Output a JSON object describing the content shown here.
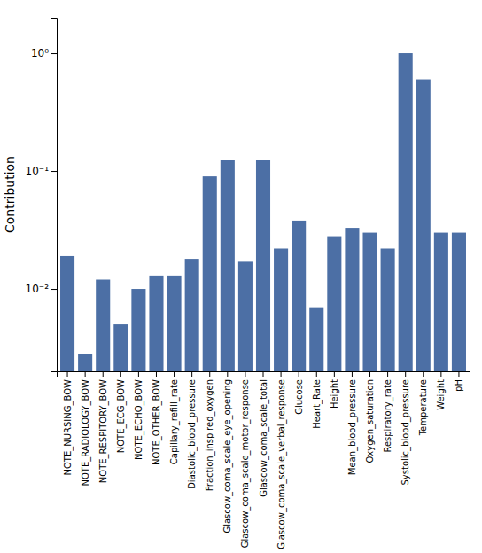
{
  "chart_data": {
    "type": "bar",
    "categories": [
      "NOTE_NURSING_BOW",
      "NOTE_RADIOLOGY_BOW",
      "NOTE_RESPITORY_BOW",
      "NOTE_ECG_BOW",
      "NOTE_ECHO_BOW",
      "NOTE_OTHER_BOW",
      "Capillary_refill_rate",
      "Diastolic_blood_pressure",
      "Fraction_inspired_oxygen",
      "Glascow_coma_scale_eye_opening",
      "Glascow_coma_scale_motor_response",
      "Glascow_coma_scale_total",
      "Glascow_coma_scale_verbal_response",
      "Glucose",
      "Heart_Rate",
      "Height",
      "Mean_blood_pressure",
      "Oxygen_saturation",
      "Respiratory_rate",
      "Systolic_blood_pressure",
      "Temperature",
      "Weight",
      "pH"
    ],
    "values": [
      0.019,
      0.0028,
      0.012,
      0.005,
      0.01,
      0.013,
      0.013,
      0.018,
      0.09,
      0.125,
      0.017,
      0.125,
      0.022,
      0.038,
      0.007,
      0.028,
      0.033,
      0.03,
      0.022,
      1.0,
      0.6,
      0.03,
      0.03
    ],
    "color": "#4c6fa5",
    "ylabel": "Contribution",
    "ylim": [
      0.002,
      2.0
    ],
    "yticks": [
      {
        "value": 0.01,
        "label": "10⁻²"
      },
      {
        "value": 0.1,
        "label": "10⁻¹"
      },
      {
        "value": 1,
        "label": "10⁰"
      }
    ],
    "log": "y",
    "grid": false
  }
}
